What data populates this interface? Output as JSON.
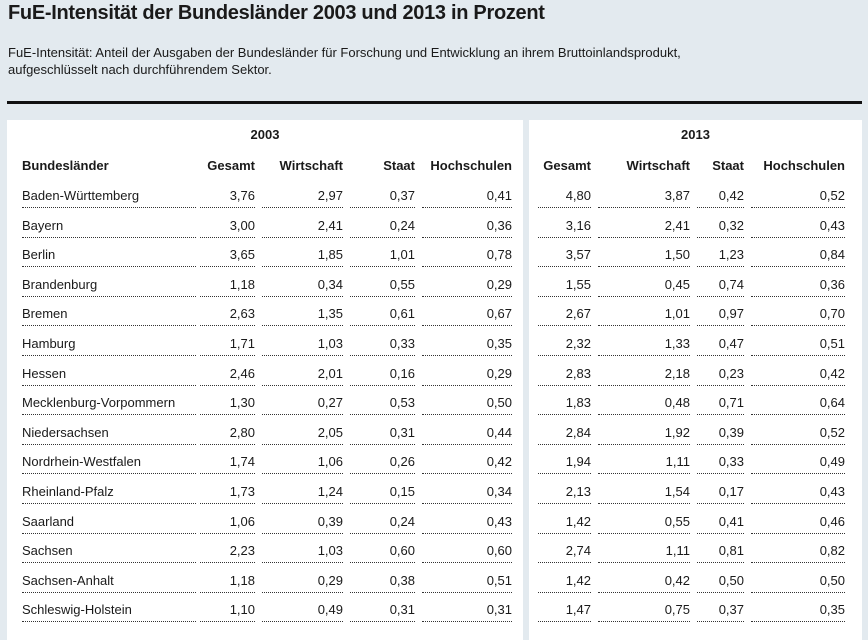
{
  "header": {
    "title": "FuE-Intensität der Bundesländer 2003 und 2013 in Prozent",
    "subtitle_lines": [
      "FuE-Intensität: Anteil der Ausgaben der Bundesländer für Forschung und Entwicklung an ihrem Bruttoinlandsprodukt,",
      "aufgeschlüsselt nach durchführendem Sektor."
    ]
  },
  "table": {
    "groups": [
      "2003",
      "2013"
    ],
    "columns": [
      "Bundesländer",
      "Gesamt",
      "Wirtschaft",
      "Staat",
      "Hochschulen",
      "Gesamt",
      "Wirtschaft",
      "Staat",
      "Hochschulen"
    ],
    "rows": [
      [
        "Baden-Württemberg",
        "3,76",
        "2,97",
        "0,37",
        "0,41",
        "4,80",
        "3,87",
        "0,42",
        "0,52"
      ],
      [
        "Bayern",
        "3,00",
        "2,41",
        "0,24",
        "0,36",
        "3,16",
        "2,41",
        "0,32",
        "0,43"
      ],
      [
        "Berlin",
        "3,65",
        "1,85",
        "1,01",
        "0,78",
        "3,57",
        "1,50",
        "1,23",
        "0,84"
      ],
      [
        "Brandenburg",
        "1,18",
        "0,34",
        "0,55",
        "0,29",
        "1,55",
        "0,45",
        "0,74",
        "0,36"
      ],
      [
        "Bremen",
        "2,63",
        "1,35",
        "0,61",
        "0,67",
        "2,67",
        "1,01",
        "0,97",
        "0,70"
      ],
      [
        "Hamburg",
        "1,71",
        "1,03",
        "0,33",
        "0,35",
        "2,32",
        "1,33",
        "0,47",
        "0,51"
      ],
      [
        "Hessen",
        "2,46",
        "2,01",
        "0,16",
        "0,29",
        "2,83",
        "2,18",
        "0,23",
        "0,42"
      ],
      [
        "Mecklenburg-Vorpommern",
        "1,30",
        "0,27",
        "0,53",
        "0,50",
        "1,83",
        "0,48",
        "0,71",
        "0,64"
      ],
      [
        "Niedersachsen",
        "2,80",
        "2,05",
        "0,31",
        "0,44",
        "2,84",
        "1,92",
        "0,39",
        "0,52"
      ],
      [
        "Nordrhein-Westfalen",
        "1,74",
        "1,06",
        "0,26",
        "0,42",
        "1,94",
        "1,11",
        "0,33",
        "0,49"
      ],
      [
        "Rheinland-Pfalz",
        "1,73",
        "1,24",
        "0,15",
        "0,34",
        "2,13",
        "1,54",
        "0,17",
        "0,43"
      ],
      [
        "Saarland",
        "1,06",
        "0,39",
        "0,24",
        "0,43",
        "1,42",
        "0,55",
        "0,41",
        "0,46"
      ],
      [
        "Sachsen",
        "2,23",
        "1,03",
        "0,60",
        "0,60",
        "2,74",
        "1,11",
        "0,81",
        "0,82"
      ],
      [
        "Sachsen-Anhalt",
        "1,18",
        "0,29",
        "0,38",
        "0,51",
        "1,42",
        "0,42",
        "0,50",
        "0,50"
      ],
      [
        "Schleswig-Holstein",
        "1,10",
        "0,49",
        "0,31",
        "0,31",
        "1,47",
        "0,75",
        "0,37",
        "0,35"
      ]
    ]
  }
}
